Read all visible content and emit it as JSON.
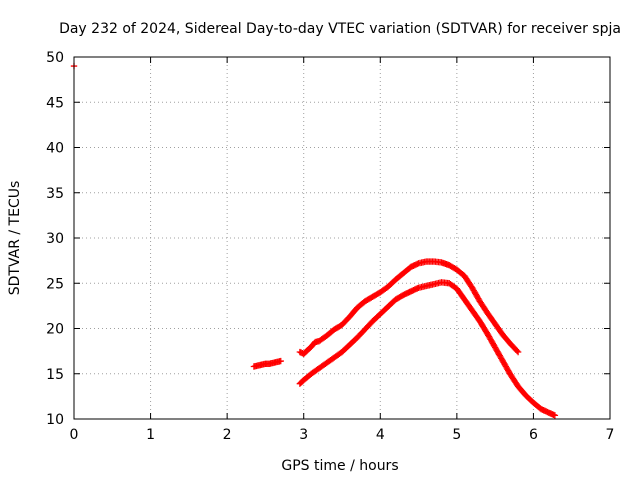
{
  "chart_data": {
    "type": "scatter",
    "title": "Day 232 of 2024, Sidereal Day-to-day VTEC variation (SDTVAR) for receiver spja",
    "xlabel": "GPS time / hours",
    "ylabel": "SDTVAR / TECUs",
    "xlim": [
      0,
      7
    ],
    "ylim": [
      10,
      50
    ],
    "grid": true,
    "x_ticks": [
      0,
      1,
      2,
      3,
      4,
      5,
      6,
      7
    ],
    "y_ticks": [
      10,
      15,
      20,
      25,
      30,
      35,
      40,
      45,
      50
    ],
    "marker": "+",
    "series": [
      {
        "name": "point-start",
        "color": "#ff0000",
        "points": [
          [
            0.0,
            49.0
          ]
        ]
      },
      {
        "name": "short-segment",
        "color": "#ff0000",
        "points": [
          [
            2.35,
            15.8
          ],
          [
            2.4,
            15.9
          ],
          [
            2.45,
            16.0
          ],
          [
            2.5,
            16.1
          ],
          [
            2.55,
            16.1
          ],
          [
            2.6,
            16.2
          ],
          [
            2.65,
            16.3
          ],
          [
            2.7,
            16.4
          ]
        ]
      },
      {
        "name": "upper-arc",
        "color": "#ff0000",
        "points": [
          [
            2.95,
            17.4
          ],
          [
            3.0,
            17.2
          ],
          [
            3.05,
            17.6
          ],
          [
            3.1,
            18.0
          ],
          [
            3.15,
            18.5
          ],
          [
            3.2,
            18.6
          ],
          [
            3.3,
            19.2
          ],
          [
            3.4,
            19.9
          ],
          [
            3.5,
            20.4
          ],
          [
            3.6,
            21.3
          ],
          [
            3.7,
            22.3
          ],
          [
            3.8,
            23.0
          ],
          [
            3.9,
            23.5
          ],
          [
            4.0,
            24.0
          ],
          [
            4.1,
            24.6
          ],
          [
            4.2,
            25.4
          ],
          [
            4.3,
            26.1
          ],
          [
            4.4,
            26.8
          ],
          [
            4.5,
            27.2
          ],
          [
            4.6,
            27.4
          ],
          [
            4.7,
            27.4
          ],
          [
            4.8,
            27.3
          ],
          [
            4.9,
            27.0
          ],
          [
            5.0,
            26.5
          ],
          [
            5.1,
            25.8
          ],
          [
            5.2,
            24.5
          ],
          [
            5.3,
            23.0
          ],
          [
            5.4,
            21.7
          ],
          [
            5.5,
            20.5
          ],
          [
            5.6,
            19.3
          ],
          [
            5.7,
            18.3
          ],
          [
            5.8,
            17.4
          ]
        ]
      },
      {
        "name": "lower-arc",
        "color": "#ff0000",
        "points": [
          [
            2.95,
            13.9
          ],
          [
            3.0,
            14.3
          ],
          [
            3.1,
            15.0
          ],
          [
            3.2,
            15.6
          ],
          [
            3.3,
            16.2
          ],
          [
            3.4,
            16.8
          ],
          [
            3.5,
            17.4
          ],
          [
            3.6,
            18.2
          ],
          [
            3.7,
            19.0
          ],
          [
            3.8,
            19.9
          ],
          [
            3.9,
            20.8
          ],
          [
            4.0,
            21.6
          ],
          [
            4.1,
            22.4
          ],
          [
            4.2,
            23.2
          ],
          [
            4.3,
            23.7
          ],
          [
            4.4,
            24.1
          ],
          [
            4.5,
            24.5
          ],
          [
            4.6,
            24.7
          ],
          [
            4.7,
            24.9
          ],
          [
            4.8,
            25.1
          ],
          [
            4.9,
            25.0
          ],
          [
            5.0,
            24.4
          ],
          [
            5.1,
            23.2
          ],
          [
            5.2,
            22.0
          ],
          [
            5.3,
            20.8
          ],
          [
            5.4,
            19.4
          ],
          [
            5.5,
            17.9
          ],
          [
            5.6,
            16.4
          ],
          [
            5.7,
            14.9
          ],
          [
            5.8,
            13.6
          ],
          [
            5.9,
            12.6
          ],
          [
            6.0,
            11.8
          ],
          [
            6.1,
            11.1
          ],
          [
            6.2,
            10.7
          ],
          [
            6.28,
            10.4
          ]
        ]
      }
    ]
  }
}
